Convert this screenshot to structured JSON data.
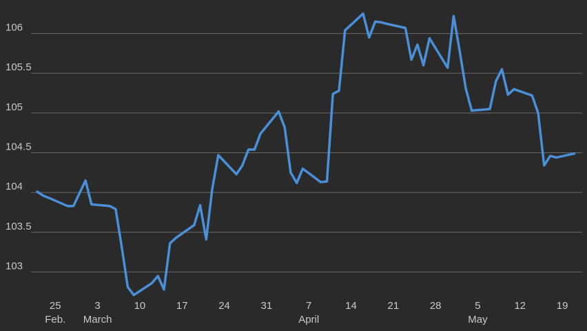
{
  "chart_data": {
    "type": "line",
    "title": "",
    "xlabel": "",
    "ylabel": "",
    "ylim": [
      102.7,
      106.3
    ],
    "y_ticks": [
      "103",
      "103.5",
      "104",
      "104.5",
      "105",
      "105.5",
      "106"
    ],
    "y_tick_values": [
      103,
      103.5,
      104,
      104.5,
      105,
      105.5,
      106
    ],
    "grid": true,
    "x_ticks": [
      {
        "date": "2024-02-25",
        "day": "25",
        "month": "Feb."
      },
      {
        "date": "2024-03-03",
        "day": "3",
        "month": "March"
      },
      {
        "date": "2024-03-10",
        "day": "10",
        "month": ""
      },
      {
        "date": "2024-03-17",
        "day": "17",
        "month": ""
      },
      {
        "date": "2024-03-24",
        "day": "24",
        "month": ""
      },
      {
        "date": "2024-03-31",
        "day": "31",
        "month": ""
      },
      {
        "date": "2024-04-07",
        "day": "7",
        "month": "April"
      },
      {
        "date": "2024-04-14",
        "day": "14",
        "month": ""
      },
      {
        "date": "2024-04-21",
        "day": "21",
        "month": ""
      },
      {
        "date": "2024-04-28",
        "day": "28",
        "month": ""
      },
      {
        "date": "2024-05-05",
        "day": "5",
        "month": "May"
      },
      {
        "date": "2024-05-12",
        "day": "12",
        "month": ""
      },
      {
        "date": "2024-05-19",
        "day": "19",
        "month": ""
      }
    ],
    "line_color": "#4a90d9",
    "series": [
      {
        "x": [
          "2024-02-22",
          "2024-02-23",
          "2024-02-24",
          "2024-02-27",
          "2024-02-28",
          "2024-03-01",
          "2024-03-02",
          "2024-03-05",
          "2024-03-06",
          "2024-03-07",
          "2024-03-08",
          "2024-03-09",
          "2024-03-12",
          "2024-03-13",
          "2024-03-14",
          "2024-03-15",
          "2024-03-16",
          "2024-03-19",
          "2024-03-20",
          "2024-03-21",
          "2024-03-22",
          "2024-03-23",
          "2024-03-26",
          "2024-03-27",
          "2024-03-28",
          "2024-03-29",
          "2024-03-30",
          "2024-04-02",
          "2024-04-03",
          "2024-04-04",
          "2024-04-05",
          "2024-04-06",
          "2024-04-09",
          "2024-04-10",
          "2024-04-11",
          "2024-04-12",
          "2024-04-13",
          "2024-04-16",
          "2024-04-17",
          "2024-04-18",
          "2024-04-19",
          "2024-04-20",
          "2024-04-23",
          "2024-04-24",
          "2024-04-25",
          "2024-04-26",
          "2024-04-27",
          "2024-04-30",
          "2024-05-01",
          "2024-05-02",
          "2024-05-03",
          "2024-05-04",
          "2024-05-07",
          "2024-05-08",
          "2024-05-09",
          "2024-05-10",
          "2024-05-11",
          "2024-05-14",
          "2024-05-15",
          "2024-05-16",
          "2024-05-17",
          "2024-05-18",
          "2024-05-21"
        ],
        "values": [
          104.01,
          103.96,
          103.93,
          103.83,
          103.83,
          104.15,
          103.85,
          103.83,
          103.79,
          103.32,
          102.81,
          102.71,
          102.86,
          102.95,
          102.78,
          103.36,
          103.43,
          103.59,
          103.84,
          103.41,
          104.04,
          104.47,
          104.23,
          104.34,
          104.54,
          104.54,
          104.74,
          105.02,
          104.82,
          104.25,
          104.12,
          104.3,
          104.13,
          104.14,
          105.24,
          105.28,
          106.04,
          106.25,
          105.95,
          106.15,
          106.14,
          106.12,
          106.07,
          105.67,
          105.86,
          105.6,
          105.94,
          105.57,
          106.22,
          105.78,
          105.31,
          105.03,
          105.05,
          105.4,
          105.55,
          105.23,
          105.3,
          105.22,
          105.0,
          104.34,
          104.46,
          104.44,
          104.49
        ]
      }
    ]
  }
}
